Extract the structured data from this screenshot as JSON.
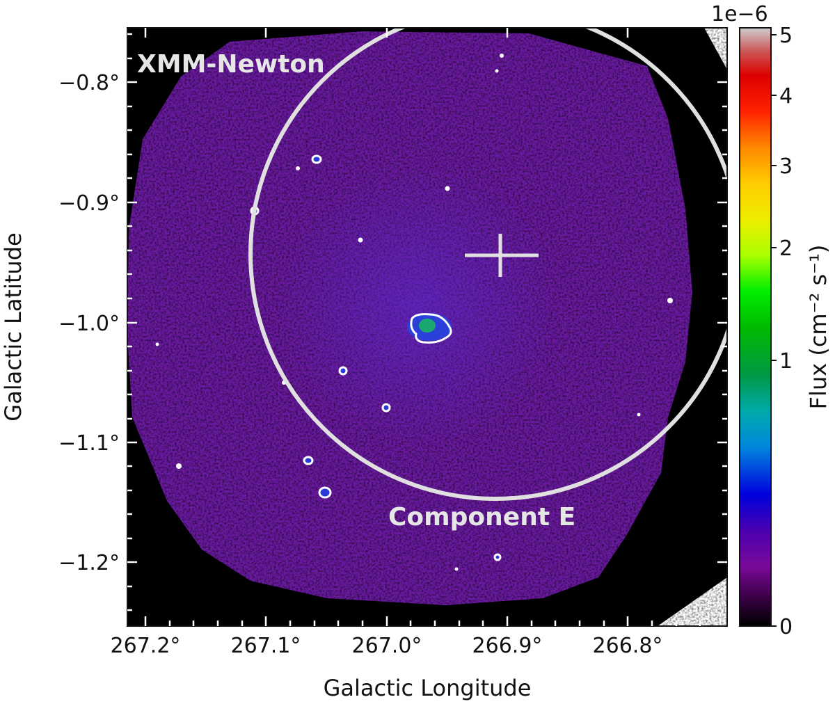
{
  "image": {
    "instrument_label": "XMM-Newton",
    "region_label": "Component E",
    "x_axis_title": "Galactic Longitude",
    "y_axis_title": "Galactic Latitude",
    "x_tick_labels": [
      "267.2°",
      "267.1°",
      "267.0°",
      "266.9°",
      "266.8°"
    ],
    "y_tick_labels": [
      "−0.8°",
      "−0.9°",
      "−1.0°",
      "−1.1°",
      "−1.2°"
    ],
    "colorbar": {
      "title": "Flux (cm⁻² s⁻¹)",
      "multiplier": "1e−6",
      "tick_labels": [
        "0",
        "1",
        "2",
        "3",
        "4",
        "5"
      ],
      "colormap": "nipy_spectral"
    },
    "colors": {
      "background": "#000000",
      "emission": "#6a1aa0",
      "circle": "#e0e0e0",
      "contour": "#ffffff"
    }
  }
}
